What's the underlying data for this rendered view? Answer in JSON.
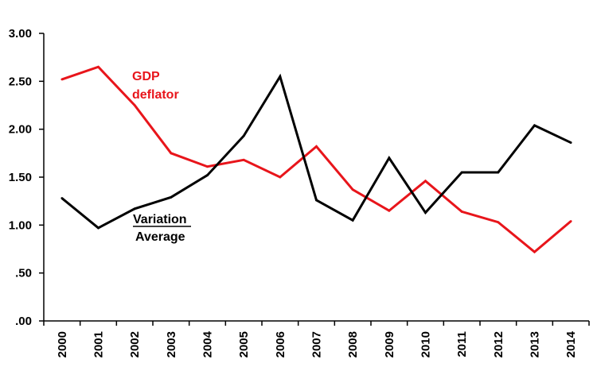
{
  "chart_data": {
    "type": "line",
    "x": [
      "2000",
      "2001",
      "2002",
      "2003",
      "2004",
      "2005",
      "2006",
      "2007",
      "2008",
      "2009",
      "2010",
      "2011",
      "2012",
      "2013",
      "2014"
    ],
    "ylim": [
      0,
      3
    ],
    "y_ticks": [
      {
        "value": 3.0,
        "label": "3.00"
      },
      {
        "value": 2.5,
        "label": "2.50"
      },
      {
        "value": 2.0,
        "label": "2.00"
      },
      {
        "value": 1.5,
        "label": "1.50"
      },
      {
        "value": 1.0,
        "label": "1.00"
      },
      {
        "value": 0.5,
        "label": ".50"
      },
      {
        "value": 0.0,
        "label": ".00"
      }
    ],
    "grid": false,
    "series": [
      {
        "name": "GDP deflator",
        "color": "#e8151b",
        "values": [
          2.52,
          2.65,
          2.25,
          1.75,
          1.61,
          1.68,
          1.5,
          1.82,
          1.37,
          1.15,
          1.46,
          1.14,
          1.03,
          0.72,
          1.04
        ]
      },
      {
        "name": "Variation / Average",
        "color": "#000000",
        "values": [
          1.28,
          0.97,
          1.17,
          1.29,
          1.52,
          1.93,
          2.55,
          1.26,
          1.05,
          1.7,
          1.13,
          1.55,
          1.55,
          2.04,
          1.86
        ]
      }
    ],
    "annotations": {
      "gdp_line1": "GDP",
      "gdp_line2": "deflator",
      "variation": "Variation",
      "average": "Average"
    }
  }
}
